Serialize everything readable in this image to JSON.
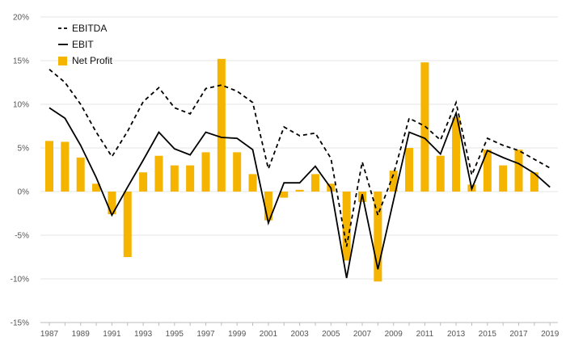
{
  "chart_data": {
    "type": "bar+line",
    "title": "",
    "xlabel": "",
    "ylabel": "",
    "ylim": [
      -15,
      20
    ],
    "yticks": [
      -15,
      -10,
      -5,
      0,
      5,
      10,
      15,
      20
    ],
    "ytick_labels": [
      "-15%",
      "-10%",
      "-5%",
      "0%",
      "5%",
      "10%",
      "15%",
      "20%"
    ],
    "years": [
      1987,
      1988,
      1989,
      1990,
      1991,
      1992,
      1993,
      1994,
      1995,
      1996,
      1997,
      1998,
      1999,
      2000,
      2001,
      2002,
      2003,
      2004,
      2005,
      2006,
      2007,
      2008,
      2009,
      2010,
      2011,
      2012,
      2013,
      2014,
      2015,
      2016,
      2017,
      2018,
      2019
    ],
    "xtick_labels": [
      "1987",
      "1989",
      "1991",
      "1993",
      "1995",
      "1997",
      "1999",
      "2001",
      "2003",
      "2005",
      "2007",
      "2009",
      "2011",
      "2013",
      "2015",
      "2017",
      "2019"
    ],
    "legend_position": "top-left",
    "grid": true,
    "series": [
      {
        "name": "EBITDA",
        "kind": "line",
        "style": "dashed",
        "color": "#000000",
        "values": [
          14.0,
          12.5,
          10.0,
          6.8,
          4.0,
          6.9,
          10.3,
          11.9,
          9.6,
          8.9,
          11.8,
          12.2,
          11.5,
          10.2,
          2.6,
          7.4,
          6.4,
          6.7,
          3.8,
          -6.3,
          3.4,
          -2.7,
          2.0,
          8.4,
          7.5,
          5.9,
          10.2,
          1.9,
          6.1,
          5.3,
          4.7,
          3.7,
          2.7
        ]
      },
      {
        "name": "EBIT",
        "kind": "line",
        "style": "solid",
        "color": "#000000",
        "values": [
          9.6,
          8.4,
          5.3,
          1.6,
          -2.7,
          0.5,
          3.6,
          6.8,
          4.9,
          4.2,
          6.8,
          6.2,
          6.1,
          4.8,
          -3.6,
          1.0,
          1.0,
          2.9,
          0.4,
          -9.9,
          -0.3,
          -8.9,
          -1.0,
          6.8,
          6.1,
          4.3,
          9.0,
          0.3,
          4.7,
          3.9,
          3.2,
          2.1,
          0.5
        ]
      },
      {
        "name": "Net Profit",
        "kind": "bar",
        "color": "#f5b400",
        "values": [
          5.8,
          5.7,
          3.9,
          0.9,
          -2.6,
          -7.5,
          2.2,
          4.1,
          3.0,
          3.0,
          4.5,
          15.2,
          4.5,
          2.0,
          -3.3,
          -0.7,
          0.2,
          2.0,
          0.9,
          -7.9,
          -1.2,
          -10.3,
          2.4,
          5.0,
          14.8,
          4.1,
          8.5,
          0.8,
          4.8,
          3.0,
          4.8,
          2.2,
          0.0
        ]
      }
    ]
  }
}
